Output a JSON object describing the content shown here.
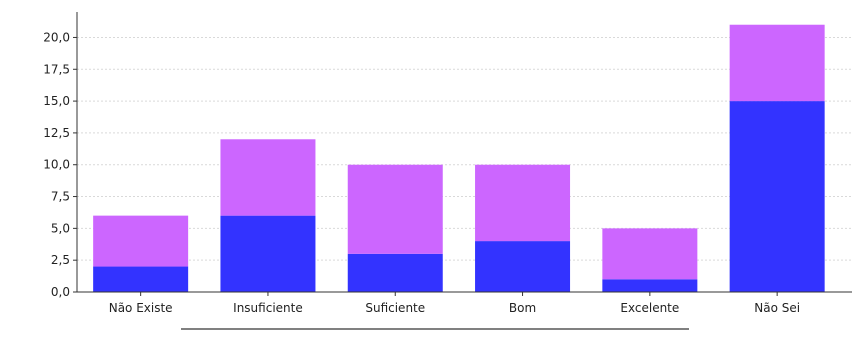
{
  "chart_data": {
    "type": "bar",
    "stacked": true,
    "categories": [
      "Não Existe",
      "Insuficiente",
      "Suficiente",
      "Bom",
      "Excelente",
      "Não Sei"
    ],
    "series": [
      {
        "values": [
          2,
          6,
          3,
          4,
          1,
          15
        ],
        "color": "#3333ff"
      },
      {
        "values": [
          4,
          6,
          7,
          6,
          4,
          6
        ],
        "color": "#cc66ff"
      }
    ],
    "ylim": [
      0,
      22
    ],
    "yticks": [
      0,
      2.5,
      5,
      7.5,
      10,
      12.5,
      15,
      17.5,
      20
    ],
    "ytick_labels": [
      "0,0",
      "2,5",
      "5,0",
      "7,5",
      "10,0",
      "12,5",
      "15,0",
      "17,5",
      "20,0"
    ],
    "grid": true,
    "grid_color": "#d9d9d9",
    "axis_color": "#333333"
  }
}
